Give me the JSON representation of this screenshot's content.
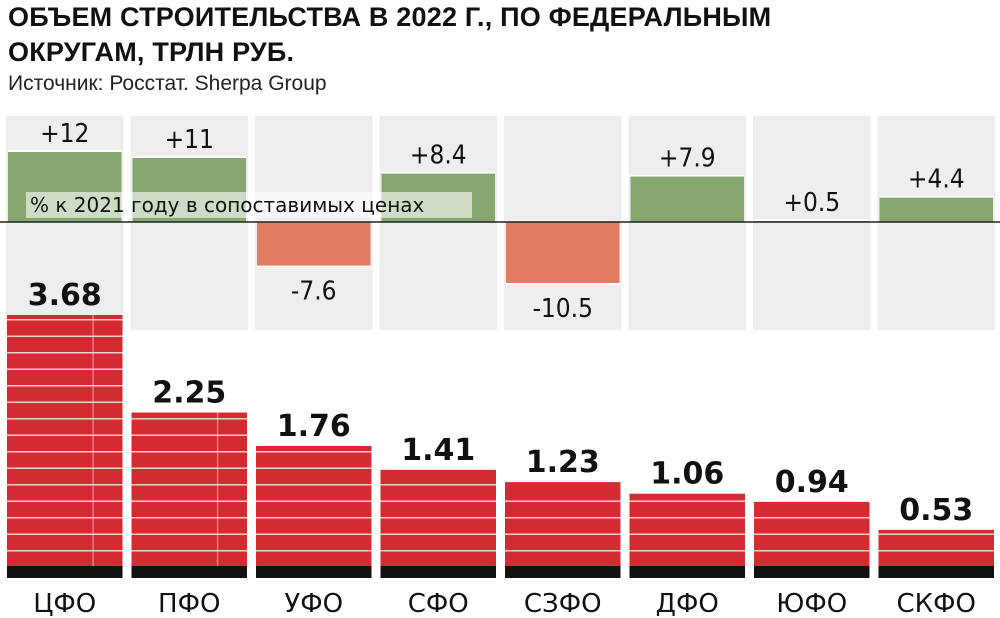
{
  "header": {
    "title_line1": "ОБЪЕМ СТРОИТЕЛЬСТВА В 2022 Г., ПО ФЕДЕРАЛЬНЫМ",
    "title_line2": "ОКРУГАМ, ТРЛН РУБ.",
    "source": "Источник: Росстат. Sherpa Group"
  },
  "chart_data": {
    "type": "bar",
    "title": "ОБЪЕМ СТРОИТЕЛЬСТВА В 2022 Г., ПО ФЕДЕРАЛЬНЫМ ОКРУГАМ, ТРЛН РУБ.",
    "categories": [
      "ЦФО",
      "ПФО",
      "УФО",
      "СФО",
      "СЗФО",
      "ДФО",
      "ЮФО",
      "СКФО"
    ],
    "values": [
      3.68,
      2.25,
      1.76,
      1.41,
      1.23,
      1.06,
      0.94,
      0.53
    ],
    "value_labels": [
      "3.68",
      "2.25",
      "1.76",
      "1.41",
      "1.23",
      "1.06",
      "0.94",
      "0.53"
    ],
    "change": {
      "label": "% к 2021 году в сопоставимых ценах",
      "values": [
        12,
        11,
        -7.6,
        8.4,
        -10.5,
        7.9,
        0.5,
        4.4
      ],
      "value_labels": [
        "+12",
        "+11",
        "-7.6",
        "+8.4",
        "-10.5",
        "+7.9",
        "+0.5",
        "+4.4"
      ]
    },
    "colors": {
      "volume_bar": "#d42a32",
      "volume_base": "#111111",
      "positive": "#86a870",
      "negative": "#e07d63",
      "column_bg": "#eeeeee"
    },
    "xlabel": "",
    "ylabel": ""
  }
}
